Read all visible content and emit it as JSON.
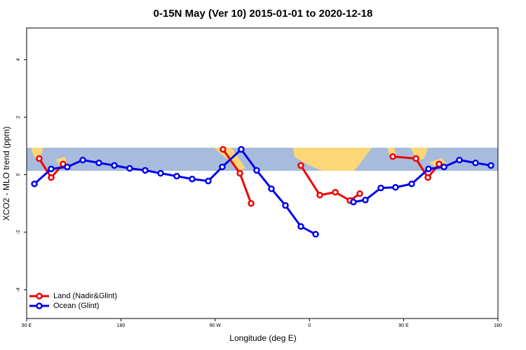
{
  "chart_data": {
    "type": "line",
    "title": "0-15N May (Ver 10)   2015-01-01 to 2020-12-18",
    "x_label": "Longitude (deg E)",
    "y_label": "XCO2 - MLO trend (ppm)",
    "xlim": [
      90,
      540
    ],
    "ylim": [
      -5.0,
      5.1
    ],
    "xticks": [
      {
        "value": 90,
        "label": "90 E"
      },
      180,
      {
        "value": 270,
        "label": "90 W"
      },
      {
        "value": 360,
        "label": "0"
      },
      {
        "value": 450,
        "label": "90 E"
      },
      {
        "value": 540,
        "label": "180"
      }
    ],
    "yticks": [
      -4,
      -2,
      0,
      2,
      4
    ],
    "legend": "bottom-left",
    "series": [
      {
        "name": "Land (Nadir&Glint)",
        "color": "#ee0000",
        "x": [
          102,
          113.4,
          124.8,
          200,
          277.5,
          293.6,
          304.3,
          330,
          351.8,
          369.9,
          384.7,
          398.7,
          408.1,
          425,
          439.6,
          461.7,
          473.1,
          483.8
        ],
        "values": [
          0.56,
          -0.1,
          0.37,
          null,
          0.88,
          0.05,
          -1.0,
          null,
          0.32,
          -0.71,
          -0.61,
          -0.9,
          -0.66,
          null,
          0.63,
          0.56,
          -0.1,
          0.37
        ]
      },
      {
        "name": "Ocean (Glint)",
        "color": "#0000ee",
        "x": [
          97.4,
          113.4,
          128.8,
          143.6,
          159,
          173.7,
          188.4,
          203.2,
          217.9,
          233.3,
          248,
          263.4,
          276.8,
          294.9,
          309.6,
          323.7,
          337.1,
          351.8,
          365.9,
          384,
          402,
          413.4,
          428.2,
          442.2,
          457.6,
          473.7,
          488.5,
          503.2,
          518.6,
          533.3
        ],
        "values": [
          -0.32,
          0.2,
          0.27,
          0.51,
          0.41,
          0.32,
          0.22,
          0.15,
          0.05,
          -0.05,
          -0.15,
          -0.22,
          0.27,
          0.88,
          0.15,
          -0.49,
          -1.07,
          -1.8,
          -2.07,
          null,
          -0.95,
          -0.88,
          -0.46,
          -0.44,
          -0.32,
          0.2,
          0.27,
          0.51,
          0.41,
          0.32
        ]
      }
    ]
  }
}
